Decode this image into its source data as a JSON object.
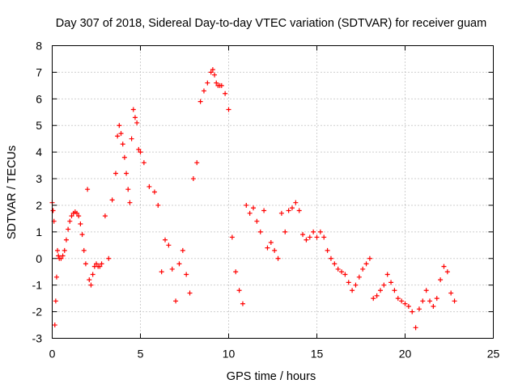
{
  "chart_data": {
    "type": "scatter",
    "title": "Day 307 of 2018, Sidereal Day-to-day VTEC variation (SDTVAR) for receiver guam",
    "xlabel": "GPS time / hours",
    "ylabel": "SDTVAR / TECUs",
    "xlim": [
      0,
      25
    ],
    "ylim": [
      -3,
      8
    ],
    "xticks": [
      "0",
      "5",
      "10",
      "15",
      "20",
      "25"
    ],
    "yticks": [
      "-3",
      "-2",
      "-1",
      "0",
      "1",
      "2",
      "3",
      "4",
      "5",
      "6",
      "7",
      "8"
    ],
    "grid": true,
    "marker": "+",
    "color": "#ff0000",
    "series": [
      {
        "name": "SDTVAR",
        "x": [
          0.0,
          0.05,
          0.1,
          0.15,
          0.2,
          0.25,
          0.3,
          0.35,
          0.4,
          0.5,
          0.6,
          0.7,
          0.8,
          0.9,
          1.0,
          1.1,
          1.2,
          1.3,
          1.4,
          1.5,
          1.6,
          1.7,
          1.8,
          1.9,
          2.0,
          2.1,
          2.2,
          2.3,
          2.4,
          2.5,
          2.6,
          2.7,
          2.8,
          3.0,
          3.2,
          3.4,
          3.6,
          3.7,
          3.8,
          3.9,
          4.0,
          4.1,
          4.2,
          4.3,
          4.4,
          4.5,
          4.6,
          4.7,
          4.8,
          4.9,
          5.0,
          5.2,
          5.5,
          5.8,
          6.0,
          6.2,
          6.4,
          6.6,
          6.8,
          7.0,
          7.2,
          7.4,
          7.6,
          7.8,
          8.0,
          8.2,
          8.4,
          8.6,
          8.8,
          9.0,
          9.1,
          9.2,
          9.3,
          9.4,
          9.5,
          9.6,
          9.8,
          10.0,
          10.2,
          10.4,
          10.6,
          10.8,
          11.0,
          11.2,
          11.4,
          11.6,
          11.8,
          12.0,
          12.2,
          12.4,
          12.6,
          12.8,
          13.0,
          13.2,
          13.4,
          13.6,
          13.8,
          14.0,
          14.2,
          14.4,
          14.6,
          14.8,
          15.0,
          15.2,
          15.4,
          15.6,
          15.8,
          16.0,
          16.2,
          16.4,
          16.6,
          16.8,
          17.0,
          17.2,
          17.4,
          17.6,
          17.8,
          18.0,
          18.2,
          18.4,
          18.6,
          18.8,
          19.0,
          19.2,
          19.4,
          19.6,
          19.8,
          20.0,
          20.2,
          20.4,
          20.6,
          20.8,
          21.0,
          21.2,
          21.4,
          21.6,
          21.8,
          22.0,
          22.2,
          22.4,
          22.6,
          22.8
        ],
        "y": [
          2.1,
          1.8,
          1.4,
          -2.5,
          -1.6,
          -0.7,
          0.3,
          0.1,
          0.0,
          0.0,
          0.1,
          0.3,
          0.7,
          1.1,
          1.4,
          1.6,
          1.7,
          1.75,
          1.7,
          1.6,
          1.3,
          0.9,
          0.3,
          -0.2,
          2.6,
          -0.8,
          -1.0,
          -0.6,
          -0.3,
          -0.2,
          -0.3,
          -0.3,
          -0.2,
          1.6,
          0.0,
          2.2,
          3.2,
          4.6,
          5.0,
          4.7,
          4.3,
          3.8,
          3.2,
          2.6,
          2.1,
          4.5,
          5.6,
          5.3,
          5.1,
          4.1,
          4.0,
          3.6,
          2.7,
          2.5,
          2.0,
          -0.5,
          0.7,
          0.5,
          -0.4,
          -1.6,
          -0.2,
          0.3,
          -0.6,
          -1.3,
          3.0,
          3.6,
          5.9,
          6.3,
          6.6,
          7.0,
          7.1,
          6.9,
          6.6,
          6.5,
          6.5,
          6.5,
          6.2,
          5.6,
          0.8,
          -0.5,
          -1.2,
          -1.7,
          2.0,
          1.7,
          1.9,
          1.4,
          1.0,
          1.8,
          0.4,
          0.6,
          0.3,
          0.0,
          1.7,
          1.0,
          1.8,
          1.9,
          2.1,
          1.8,
          0.9,
          0.7,
          0.8,
          1.0,
          0.8,
          1.0,
          0.8,
          0.3,
          0.0,
          -0.2,
          -0.4,
          -0.5,
          -0.6,
          -0.9,
          -1.2,
          -1.0,
          -0.7,
          -0.4,
          -0.2,
          0.0,
          -1.5,
          -1.4,
          -1.2,
          -1.0,
          -0.6,
          -0.9,
          -1.2,
          -1.5,
          -1.6,
          -1.7,
          -1.8,
          -2.0,
          -2.6,
          -1.9,
          -1.6,
          -1.2,
          -1.6,
          -1.8,
          -1.5,
          -0.8,
          -0.3,
          -0.5,
          -1.3,
          -1.6
        ]
      }
    ]
  }
}
